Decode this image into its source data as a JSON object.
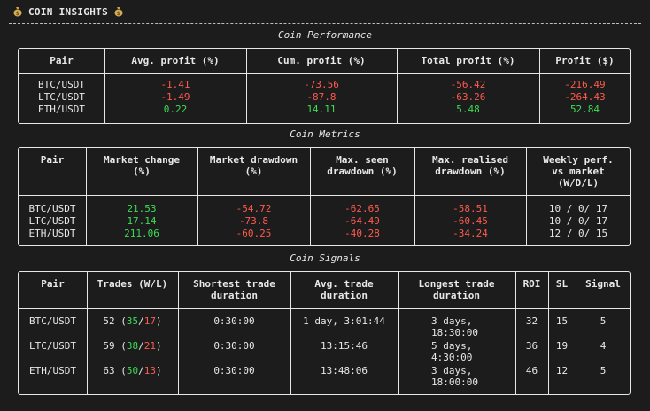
{
  "header": {
    "title": "COIN INSIGHTS"
  },
  "performance": {
    "title": "Coin Performance",
    "columns": [
      "Pair",
      "Avg. profit (%)",
      "Cum. profit (%)",
      "Total profit (%)",
      "Profit ($)"
    ],
    "rows": [
      {
        "pair": "BTC/USDT",
        "avg": "-1.41",
        "cum": "-73.56",
        "total": "-56.42",
        "profit": "-216.49"
      },
      {
        "pair": "LTC/USDT",
        "avg": "-1.49",
        "cum": "-87.8",
        "total": "-63.26",
        "profit": "-264.43"
      },
      {
        "pair": "ETH/USDT",
        "avg": "0.22",
        "cum": "14.11",
        "total": "5.48",
        "profit": "52.84"
      }
    ]
  },
  "metrics": {
    "title": "Coin Metrics",
    "columns": [
      "Pair",
      "Market change\n(%)",
      "Market drawdown\n(%)",
      "Max. seen\ndrawdown (%)",
      "Max. realised\ndrawdown (%)",
      "Weekly perf.\nvs market\n(W/D/L)"
    ],
    "rows": [
      {
        "pair": "BTC/USDT",
        "change": "21.53",
        "mdd": "-54.72",
        "seen": "-62.65",
        "real": "-58.51",
        "weekly": "10 / 0/ 17"
      },
      {
        "pair": "LTC/USDT",
        "change": "17.14",
        "mdd": "-73.8",
        "seen": "-64.49",
        "real": "-60.45",
        "weekly": "10 / 0/ 17"
      },
      {
        "pair": "ETH/USDT",
        "change": "211.06",
        "mdd": "-60.25",
        "seen": "-40.28",
        "real": "-34.24",
        "weekly": "12 / 0/ 15"
      }
    ]
  },
  "signals": {
    "title": "Coin Signals",
    "columns": [
      "Pair",
      "Trades (W/L)",
      "Shortest trade\nduration",
      "Avg. trade\nduration",
      "Longest trade\nduration",
      "ROI",
      "SL",
      "Signal"
    ],
    "rows": [
      {
        "pair": "BTC/USDT",
        "trades": "52",
        "wins": "35",
        "losses": "17",
        "shortest": "0:30:00",
        "avg": "1 day, 3:01:44",
        "longest": "3 days,\n18:30:00",
        "roi": "32",
        "sl": "15",
        "signal": "5"
      },
      {
        "pair": "LTC/USDT",
        "trades": "59",
        "wins": "38",
        "losses": "21",
        "shortest": "0:30:00",
        "avg": "13:15:46",
        "longest": "5 days,\n4:30:00",
        "roi": "36",
        "sl": "19",
        "signal": "4"
      },
      {
        "pair": "ETH/USDT",
        "trades": "63",
        "wins": "50",
        "losses": "13",
        "shortest": "0:30:00",
        "avg": "13:48:06",
        "longest": "3 days,\n18:00:00",
        "roi": "46",
        "sl": "12",
        "signal": "5"
      }
    ]
  }
}
